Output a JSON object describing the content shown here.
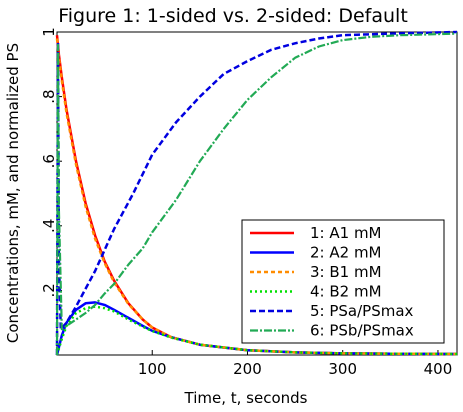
{
  "chart_data": {
    "type": "line",
    "title": "Figure 1: 1-sided vs. 2-sided: Default",
    "xlabel": "Time, t, seconds",
    "ylabel": "Concentrations, mM, and normalized PS",
    "xlim": [
      0,
      420
    ],
    "ylim": [
      0,
      1
    ],
    "xticks": [
      100,
      200,
      300,
      400
    ],
    "xtick_labels": [
      "100",
      "200",
      "300",
      "400"
    ],
    "yticks": [
      0.2,
      0.4,
      0.6,
      0.8,
      1
    ],
    "ytick_labels": [
      ".2",
      ".4",
      ".6",
      ".8",
      "1"
    ],
    "grid": false,
    "legend_position": "bottom-right",
    "series": [
      {
        "name": "1: A1 mM",
        "color": "#ff0000",
        "dash": "solid",
        "width": 2.5,
        "x": [
          0,
          2,
          5,
          10,
          20,
          30,
          40,
          50,
          60,
          75,
          90,
          100,
          120,
          150,
          200,
          250,
          300,
          350,
          420
        ],
        "y": [
          0.99,
          0.93,
          0.86,
          0.76,
          0.6,
          0.47,
          0.37,
          0.29,
          0.23,
          0.16,
          0.11,
          0.085,
          0.055,
          0.032,
          0.015,
          0.008,
          0.005,
          0.004,
          0.003
        ]
      },
      {
        "name": "2: A2 mM",
        "color": "#0000ff",
        "dash": "solid",
        "width": 2.5,
        "x": [
          0,
          5,
          10,
          20,
          30,
          40,
          50,
          60,
          75,
          90,
          100,
          120,
          150,
          200,
          250,
          300,
          350,
          420
        ],
        "y": [
          0,
          0.06,
          0.1,
          0.14,
          0.16,
          0.163,
          0.155,
          0.14,
          0.115,
          0.09,
          0.075,
          0.055,
          0.032,
          0.015,
          0.008,
          0.005,
          0.004,
          0.003
        ]
      },
      {
        "name": "3: B1 mM",
        "color": "#ff8c00",
        "dash": "4,3",
        "width": 2.5,
        "x": [
          0,
          2,
          5,
          10,
          20,
          30,
          40,
          50,
          60,
          75,
          90,
          100,
          120,
          150,
          200,
          250,
          300,
          350,
          420
        ],
        "y": [
          0.98,
          0.92,
          0.85,
          0.75,
          0.59,
          0.46,
          0.36,
          0.285,
          0.225,
          0.158,
          0.11,
          0.085,
          0.055,
          0.032,
          0.015,
          0.008,
          0.005,
          0.004,
          0.003
        ]
      },
      {
        "name": "4: B2 mM",
        "color": "#00e000",
        "dash": "2,3",
        "width": 2.5,
        "x": [
          0,
          5,
          10,
          20,
          30,
          40,
          50,
          60,
          75,
          90,
          100,
          120,
          150,
          200,
          250,
          300,
          350,
          420
        ],
        "y": [
          0,
          0.05,
          0.09,
          0.13,
          0.145,
          0.15,
          0.145,
          0.135,
          0.11,
          0.088,
          0.074,
          0.054,
          0.032,
          0.015,
          0.008,
          0.005,
          0.004,
          0.003
        ]
      },
      {
        "name": "5: PSa/PSmax",
        "color": "#0000e0",
        "dash": "6,3",
        "width": 2.5,
        "x": [
          0,
          1,
          2,
          4,
          10,
          20,
          40,
          60,
          80,
          100,
          125,
          150,
          175,
          200,
          225,
          250,
          275,
          300,
          350,
          420
        ],
        "y": [
          0,
          0.97,
          0.3,
          0.08,
          0.1,
          0.15,
          0.26,
          0.39,
          0.5,
          0.62,
          0.72,
          0.8,
          0.87,
          0.91,
          0.945,
          0.965,
          0.98,
          0.99,
          0.995,
          1.0
        ]
      },
      {
        "name": "6: PSb/PSmax",
        "color": "#22aa55",
        "dash": "8,2,2,2",
        "width": 2.2,
        "x": [
          0,
          1,
          2,
          5,
          10,
          20,
          30,
          40,
          50,
          60,
          75,
          90,
          100,
          125,
          150,
          175,
          200,
          225,
          250,
          275,
          300,
          330,
          360,
          420
        ],
        "y": [
          0,
          0.96,
          0.45,
          0.08,
          0.09,
          0.11,
          0.13,
          0.155,
          0.19,
          0.22,
          0.28,
          0.33,
          0.38,
          0.48,
          0.6,
          0.7,
          0.79,
          0.86,
          0.92,
          0.955,
          0.975,
          0.985,
          0.99,
          0.995
        ]
      }
    ]
  }
}
